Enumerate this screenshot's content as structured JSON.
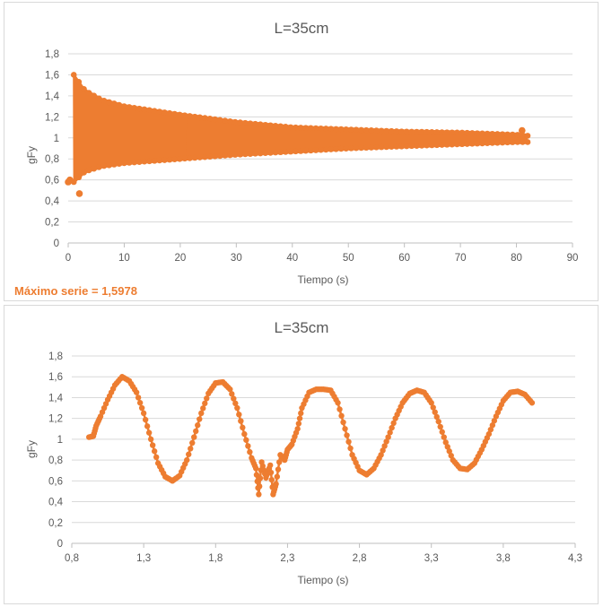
{
  "charts": [
    {
      "type": "scatter",
      "title": "L=35cm",
      "xlabel": "Tiempo (s)",
      "ylabel": "gFy",
      "xlim": [
        0,
        90
      ],
      "ylim": [
        0,
        1.8
      ],
      "x_ticks": [
        "0",
        "10",
        "20",
        "30",
        "40",
        "50",
        "60",
        "70",
        "80",
        "90"
      ],
      "y_ticks": [
        "0",
        "0,2",
        "0,4",
        "0,6",
        "0,8",
        "1",
        "1,2",
        "1,4",
        "1,6",
        "1,8"
      ],
      "annotation": "Máximo serie = 1,5978",
      "series_color": "#ed7d31",
      "envelope_upper": [
        [
          1,
          1.6
        ],
        [
          3,
          1.45
        ],
        [
          6,
          1.36
        ],
        [
          10,
          1.3
        ],
        [
          20,
          1.22
        ],
        [
          30,
          1.15
        ],
        [
          40,
          1.1
        ],
        [
          50,
          1.08
        ],
        [
          60,
          1.06
        ],
        [
          70,
          1.05
        ],
        [
          80,
          1.03
        ],
        [
          82,
          1.02
        ]
      ],
      "envelope_lower": [
        [
          1,
          0.58
        ],
        [
          3,
          0.68
        ],
        [
          6,
          0.73
        ],
        [
          10,
          0.76
        ],
        [
          20,
          0.8
        ],
        [
          30,
          0.84
        ],
        [
          40,
          0.87
        ],
        [
          50,
          0.9
        ],
        [
          60,
          0.92
        ],
        [
          70,
          0.94
        ],
        [
          80,
          0.96
        ],
        [
          82,
          0.96
        ]
      ],
      "outliers": [
        [
          0,
          0.58
        ],
        [
          0.3,
          0.6
        ],
        [
          2,
          0.47
        ],
        [
          81,
          1.07
        ]
      ]
    },
    {
      "type": "scatter",
      "title": "L=35cm",
      "xlabel": "Tiempo (s)",
      "ylabel": "gFy",
      "xlim": [
        0.8,
        4.3
      ],
      "ylim": [
        0,
        1.8
      ],
      "x_ticks": [
        "0,8",
        "1,3",
        "1,8",
        "2,3",
        "2,8",
        "3,3",
        "3,8",
        "4,3"
      ],
      "y_ticks": [
        "0",
        "0,2",
        "0,4",
        "0,6",
        "0,8",
        "1",
        "1,2",
        "1,4",
        "1,6",
        "1,8"
      ],
      "series_color": "#ed7d31",
      "points": [
        [
          0.92,
          1.02
        ],
        [
          0.95,
          1.03
        ],
        [
          0.97,
          1.13
        ],
        [
          1.0,
          1.22
        ],
        [
          1.05,
          1.38
        ],
        [
          1.1,
          1.52
        ],
        [
          1.15,
          1.6
        ],
        [
          1.2,
          1.56
        ],
        [
          1.25,
          1.45
        ],
        [
          1.3,
          1.25
        ],
        [
          1.35,
          1.0
        ],
        [
          1.4,
          0.77
        ],
        [
          1.45,
          0.64
        ],
        [
          1.5,
          0.6
        ],
        [
          1.55,
          0.65
        ],
        [
          1.6,
          0.8
        ],
        [
          1.65,
          1.02
        ],
        [
          1.7,
          1.25
        ],
        [
          1.75,
          1.44
        ],
        [
          1.8,
          1.54
        ],
        [
          1.85,
          1.55
        ],
        [
          1.9,
          1.48
        ],
        [
          1.95,
          1.3
        ],
        [
          2.0,
          1.05
        ],
        [
          2.05,
          0.82
        ],
        [
          2.08,
          0.72
        ],
        [
          2.1,
          0.47
        ],
        [
          2.12,
          0.78
        ],
        [
          2.15,
          0.63
        ],
        [
          2.18,
          0.75
        ],
        [
          2.2,
          0.47
        ],
        [
          2.22,
          0.57
        ],
        [
          2.25,
          0.85
        ],
        [
          2.28,
          0.8
        ],
        [
          2.3,
          0.9
        ],
        [
          2.33,
          0.95
        ],
        [
          2.37,
          1.1
        ],
        [
          2.4,
          1.3
        ],
        [
          2.45,
          1.45
        ],
        [
          2.5,
          1.48
        ],
        [
          2.55,
          1.48
        ],
        [
          2.6,
          1.47
        ],
        [
          2.65,
          1.35
        ],
        [
          2.7,
          1.1
        ],
        [
          2.75,
          0.85
        ],
        [
          2.8,
          0.7
        ],
        [
          2.85,
          0.66
        ],
        [
          2.9,
          0.72
        ],
        [
          2.95,
          0.85
        ],
        [
          3.0,
          1.02
        ],
        [
          3.05,
          1.2
        ],
        [
          3.1,
          1.35
        ],
        [
          3.15,
          1.44
        ],
        [
          3.2,
          1.47
        ],
        [
          3.25,
          1.45
        ],
        [
          3.3,
          1.35
        ],
        [
          3.35,
          1.17
        ],
        [
          3.4,
          0.97
        ],
        [
          3.45,
          0.8
        ],
        [
          3.5,
          0.72
        ],
        [
          3.55,
          0.71
        ],
        [
          3.6,
          0.77
        ],
        [
          3.65,
          0.9
        ],
        [
          3.7,
          1.05
        ],
        [
          3.75,
          1.22
        ],
        [
          3.8,
          1.37
        ],
        [
          3.85,
          1.45
        ],
        [
          3.9,
          1.46
        ],
        [
          3.95,
          1.43
        ],
        [
          4.0,
          1.35
        ]
      ]
    }
  ]
}
